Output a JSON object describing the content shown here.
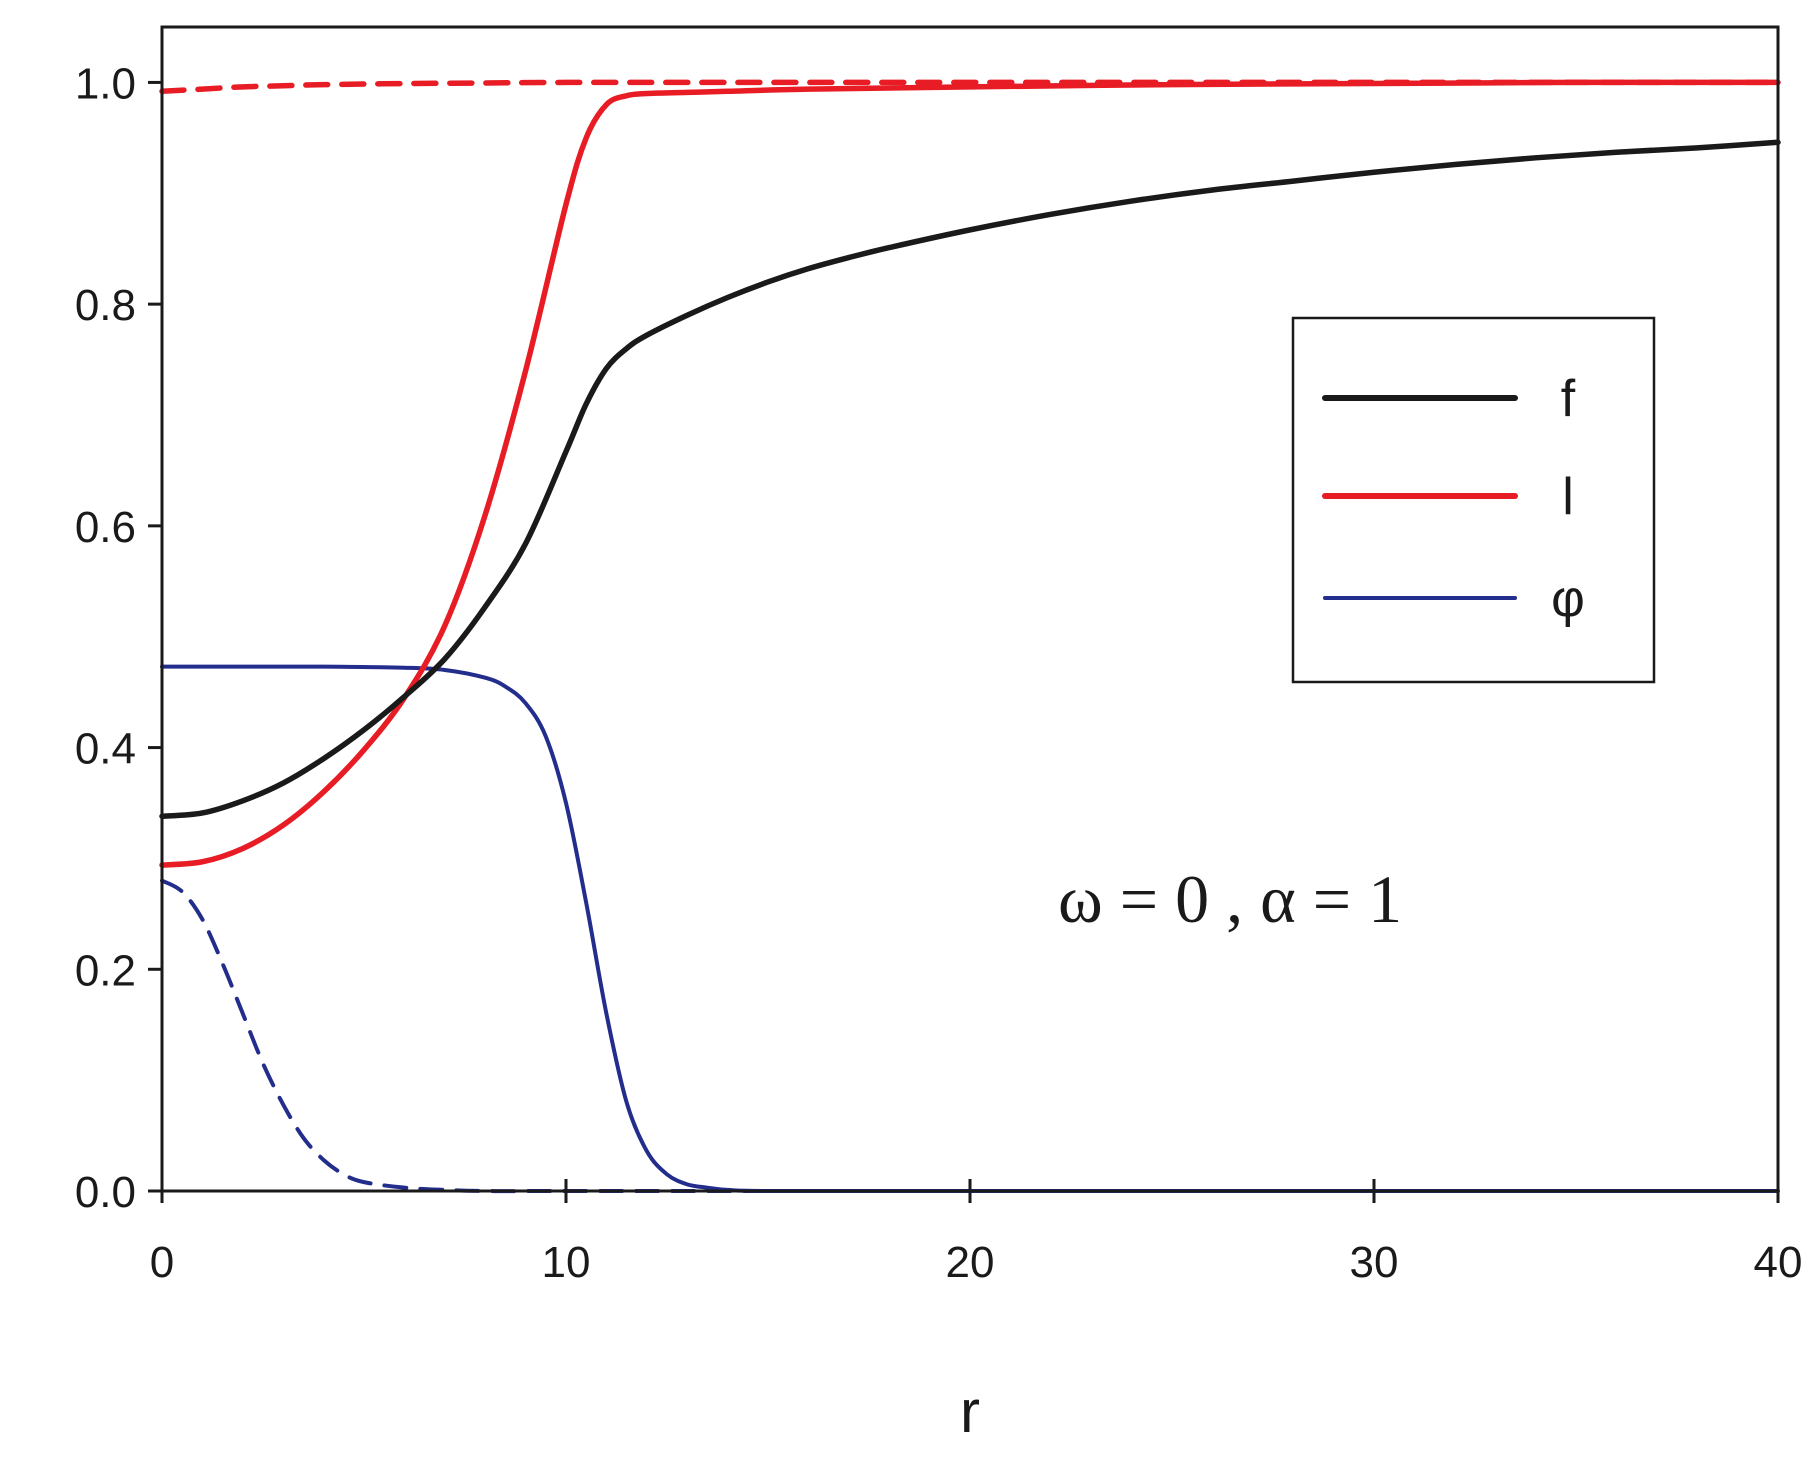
{
  "chart_data": {
    "type": "line",
    "title": "",
    "xlabel": "r",
    "ylabel": "",
    "xlim": [
      0,
      40
    ],
    "ylim": [
      0,
      1.05
    ],
    "xticks": [
      0,
      10,
      20,
      30,
      40
    ],
    "yticks": [
      0.0,
      0.2,
      0.4,
      0.6,
      0.8,
      1.0
    ],
    "xtick_labels": [
      "0",
      "10",
      "20",
      "30",
      "40"
    ],
    "ytick_labels": [
      "0.0",
      "0.2",
      "0.4",
      "0.6",
      "0.8",
      "1.0"
    ],
    "grid": false,
    "legend_placement": "right",
    "annotation": "ω = 0 , α = 1",
    "series": [
      {
        "name": "f",
        "legend": true,
        "color": "#1a1a1a",
        "dash": "solid",
        "x": [
          0,
          1,
          2,
          3,
          4,
          5,
          6,
          7,
          8,
          9,
          10,
          10.5,
          11,
          11.5,
          12,
          13,
          14,
          15,
          16,
          17,
          18,
          20,
          22,
          24,
          26,
          28,
          30,
          32,
          34,
          36,
          38,
          40
        ],
        "y": [
          0.338,
          0.341,
          0.352,
          0.368,
          0.39,
          0.416,
          0.446,
          0.48,
          0.527,
          0.584,
          0.667,
          0.71,
          0.742,
          0.76,
          0.772,
          0.79,
          0.806,
          0.82,
          0.832,
          0.842,
          0.851,
          0.867,
          0.881,
          0.893,
          0.903,
          0.911,
          0.919,
          0.926,
          0.932,
          0.937,
          0.941,
          0.946
        ]
      },
      {
        "name": "l",
        "legend": true,
        "color": "#e81c24",
        "dash": "solid",
        "x": [
          0,
          1,
          2,
          3,
          4,
          5,
          6,
          7,
          8,
          9,
          10,
          10.5,
          11,
          11.5,
          12,
          13,
          14,
          16,
          20,
          25,
          30,
          35,
          40
        ],
        "y": [
          0.294,
          0.297,
          0.309,
          0.33,
          0.36,
          0.398,
          0.445,
          0.51,
          0.61,
          0.74,
          0.89,
          0.95,
          0.98,
          0.988,
          0.99,
          0.991,
          0.992,
          0.994,
          0.996,
          0.998,
          0.999,
          1.0,
          1.0
        ]
      },
      {
        "name": "φ",
        "legend": true,
        "color": "#232d8c",
        "dash": "solid",
        "x": [
          0,
          2,
          4,
          6,
          7,
          8,
          8.5,
          9,
          9.5,
          10,
          10.5,
          11,
          11.5,
          12,
          12.5,
          13,
          13.5,
          14,
          15,
          20,
          30,
          40
        ],
        "y": [
          0.473,
          0.473,
          0.473,
          0.472,
          0.47,
          0.463,
          0.455,
          0.44,
          0.41,
          0.35,
          0.26,
          0.16,
          0.08,
          0.036,
          0.015,
          0.006,
          0.003,
          0.001,
          0.0,
          0.0,
          0.0,
          0.0
        ]
      },
      {
        "name": "l (dashed)",
        "legend": false,
        "color": "#e81c24",
        "dash": "dashed",
        "x": [
          0,
          1,
          2,
          3,
          4,
          6,
          8,
          10,
          15,
          20,
          30,
          40
        ],
        "y": [
          0.992,
          0.994,
          0.996,
          0.997,
          0.998,
          0.999,
          0.9995,
          1.0,
          1.0,
          1.0,
          1.0,
          1.0
        ]
      },
      {
        "name": "φ (dashed)",
        "legend": false,
        "color": "#232d8c",
        "dash": "dashed",
        "x": [
          0,
          0.5,
          1,
          1.5,
          2,
          2.5,
          3,
          3.5,
          4,
          4.5,
          5,
          6,
          7,
          8,
          10,
          15,
          20,
          30,
          40
        ],
        "y": [
          0.28,
          0.27,
          0.245,
          0.205,
          0.16,
          0.115,
          0.078,
          0.048,
          0.028,
          0.015,
          0.008,
          0.003,
          0.001,
          0.0,
          0.0,
          0.0,
          0.0,
          0.0,
          0.0
        ]
      }
    ]
  }
}
